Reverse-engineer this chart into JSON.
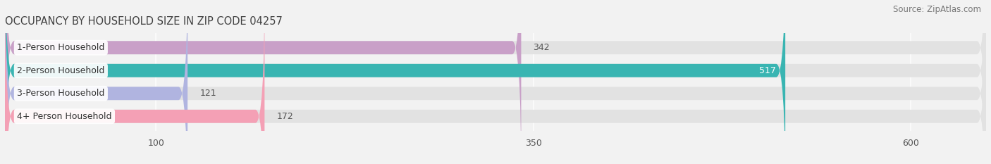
{
  "title": "OCCUPANCY BY HOUSEHOLD SIZE IN ZIP CODE 04257",
  "source": "Source: ZipAtlas.com",
  "categories": [
    "1-Person Household",
    "2-Person Household",
    "3-Person Household",
    "4+ Person Household"
  ],
  "values": [
    342,
    517,
    121,
    172
  ],
  "bar_colors": [
    "#c9a0c8",
    "#39b5b2",
    "#b0b4e0",
    "#f4a0b5"
  ],
  "xlim_max": 650,
  "xticks": [
    100,
    350,
    600
  ],
  "background_color": "#f2f2f2",
  "bar_bg_color": "#e2e2e2",
  "title_fontsize": 10.5,
  "source_fontsize": 8.5,
  "tick_fontsize": 9,
  "value_label_fontsize": 9,
  "category_fontsize": 9,
  "bar_height": 0.58,
  "label_box_color": "#ffffff",
  "value_2_color": "#ffffff",
  "value_other_color": "#555555"
}
